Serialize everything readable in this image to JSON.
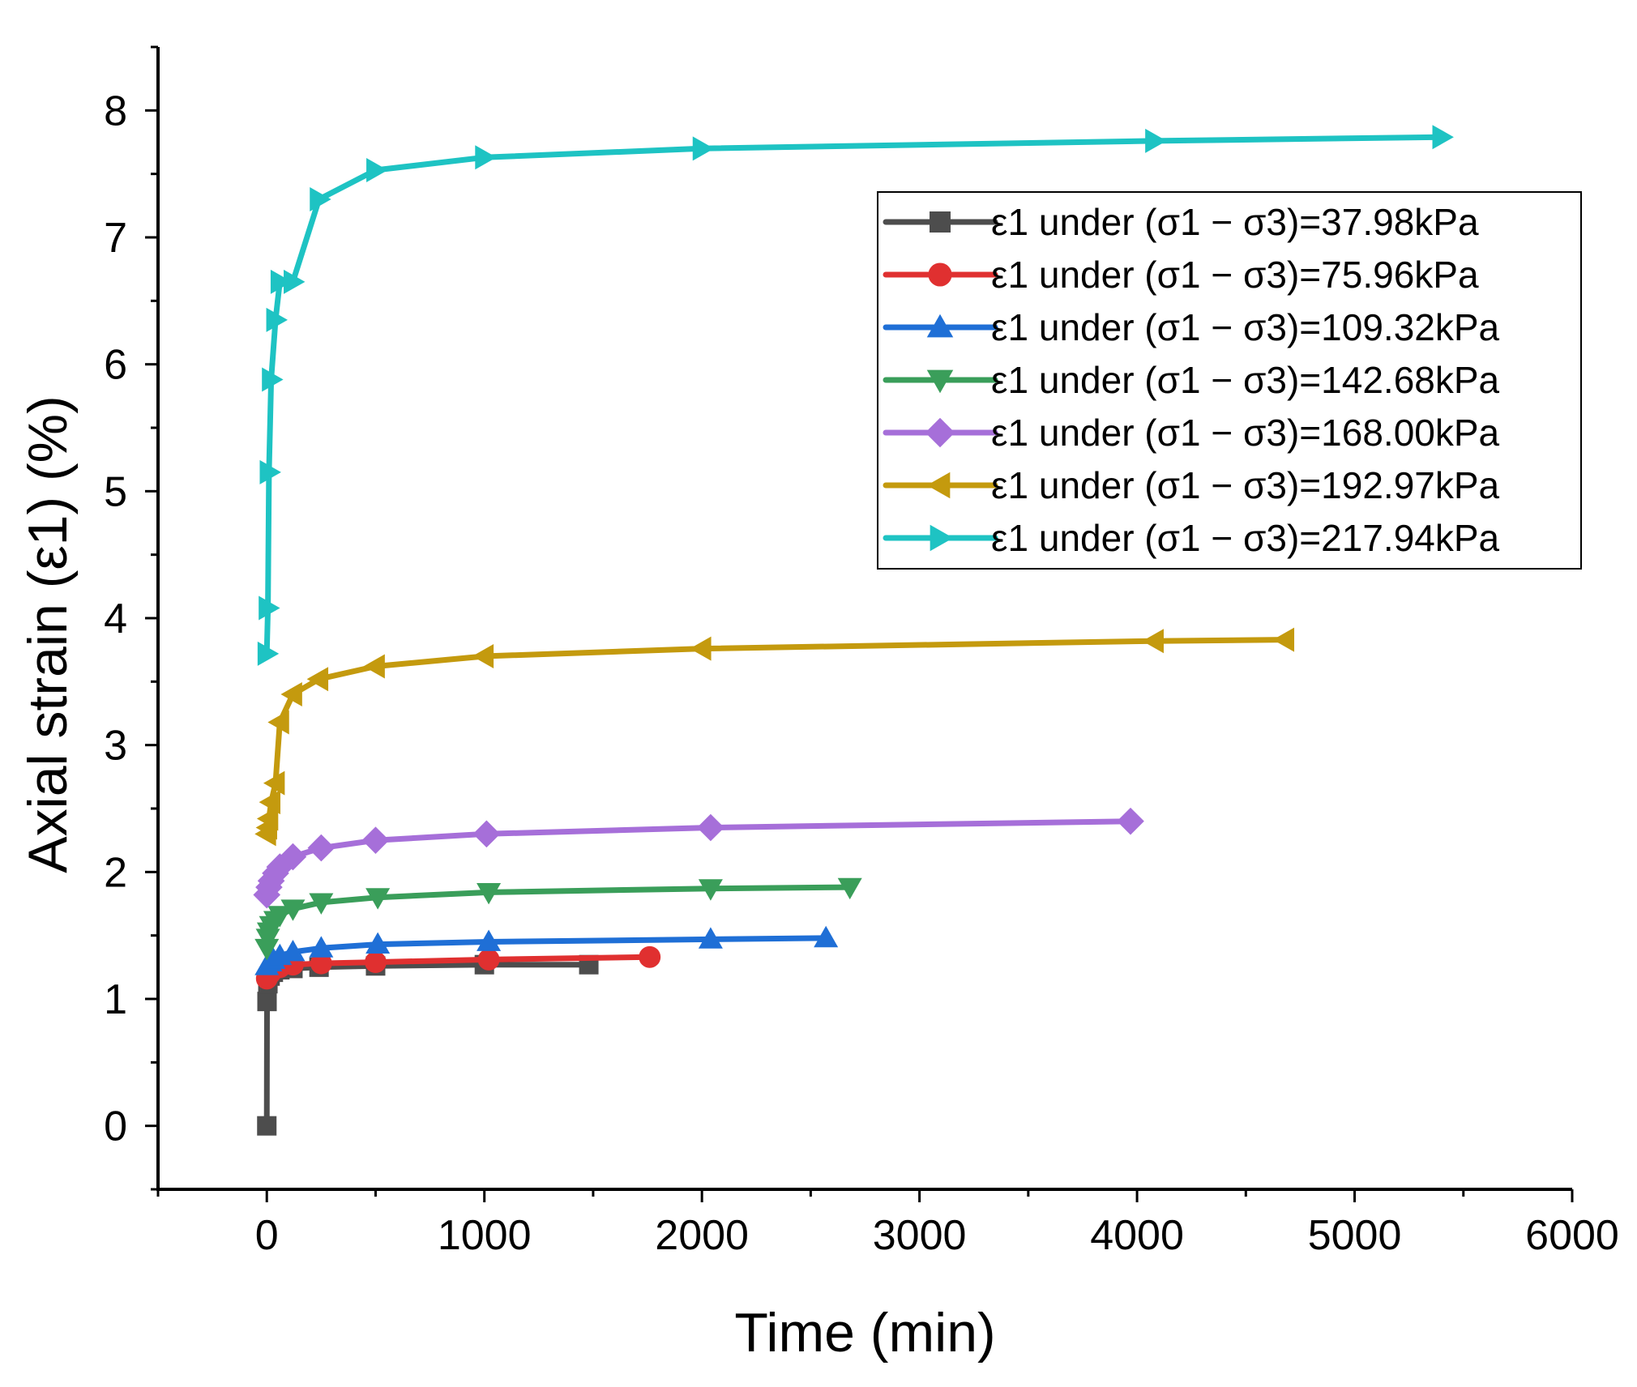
{
  "chart_data": {
    "type": "line",
    "xlabel": "Time (min)",
    "ylabel": "Axial strain (ε1) (%)",
    "xlim": [
      -500,
      6000
    ],
    "ylim": [
      -0.5,
      8.5
    ],
    "xticks": [
      0,
      1000,
      2000,
      3000,
      4000,
      5000,
      6000
    ],
    "xtick_labels": [
      "0",
      "1000",
      "2000",
      "3000",
      "4000",
      "5000",
      "6000"
    ],
    "yticks": [
      0,
      1,
      2,
      3,
      4,
      5,
      6,
      7,
      8
    ],
    "ytick_labels": [
      "0",
      "1",
      "2",
      "3",
      "4",
      "5",
      "6",
      "7",
      "8"
    ],
    "grid": false,
    "legend_position": "top-right",
    "series": [
      {
        "name": "ε1 under (σ1 − σ3)=37.98kPa",
        "color": "#4d4d4d",
        "marker": "square",
        "x": [
          0,
          1,
          5,
          15,
          30,
          60,
          120,
          240,
          500,
          1000,
          1480
        ],
        "y": [
          0,
          0.98,
          1.12,
          1.18,
          1.21,
          1.23,
          1.24,
          1.25,
          1.26,
          1.27,
          1.27
        ]
      },
      {
        "name": "ε1 under (σ1 − σ3)=75.96kPa",
        "color": "#e03030",
        "marker": "circle",
        "x": [
          0,
          15,
          30,
          60,
          120,
          250,
          500,
          1020,
          1760
        ],
        "y": [
          1.16,
          1.2,
          1.23,
          1.25,
          1.27,
          1.28,
          1.29,
          1.31,
          1.33
        ]
      },
      {
        "name": "ε1 under (σ1 − σ3)=109.32kPa",
        "color": "#1f6fd6",
        "marker": "triangle-up",
        "x": [
          0,
          15,
          30,
          60,
          120,
          250,
          510,
          1020,
          2040,
          2570
        ],
        "y": [
          1.26,
          1.29,
          1.31,
          1.34,
          1.37,
          1.4,
          1.43,
          1.45,
          1.47,
          1.48
        ]
      },
      {
        "name": "ε1 under (σ1 − σ3)=142.68kPa",
        "color": "#3a9e5a",
        "marker": "triangle-down",
        "x": [
          0,
          5,
          10,
          20,
          40,
          60,
          120,
          250,
          510,
          1020,
          2040,
          2680
        ],
        "y": [
          1.4,
          1.48,
          1.53,
          1.58,
          1.62,
          1.66,
          1.71,
          1.76,
          1.8,
          1.84,
          1.87,
          1.88
        ]
      },
      {
        "name": "ε1 under (σ1 − σ3)=168.00kPa",
        "color": "#a66fd9",
        "marker": "diamond",
        "x": [
          0,
          10,
          20,
          40,
          60,
          120,
          250,
          500,
          1010,
          2040,
          3970
        ],
        "y": [
          1.82,
          1.88,
          1.93,
          1.99,
          2.04,
          2.12,
          2.19,
          2.25,
          2.3,
          2.35,
          2.4
        ]
      },
      {
        "name": "ε1 under (σ1 − σ3)=192.97kPa",
        "color": "#c49a0e",
        "marker": "triangle-left",
        "x": [
          0,
          5,
          10,
          20,
          40,
          60,
          120,
          240,
          500,
          1000,
          2000,
          4080,
          4680
        ],
        "y": [
          2.3,
          2.35,
          2.42,
          2.55,
          2.7,
          3.18,
          3.4,
          3.52,
          3.62,
          3.7,
          3.76,
          3.82,
          3.83
        ]
      },
      {
        "name": "ε1 under (σ1 − σ3)=217.94kPa",
        "color": "#1ec3c3",
        "marker": "triangle-right",
        "x": [
          0,
          5,
          10,
          20,
          40,
          60,
          120,
          240,
          500,
          1000,
          2000,
          4080,
          5400
        ],
        "y": [
          3.72,
          4.08,
          5.15,
          5.88,
          6.35,
          6.65,
          6.65,
          7.3,
          7.53,
          7.63,
          7.7,
          7.76,
          7.79
        ]
      }
    ]
  }
}
